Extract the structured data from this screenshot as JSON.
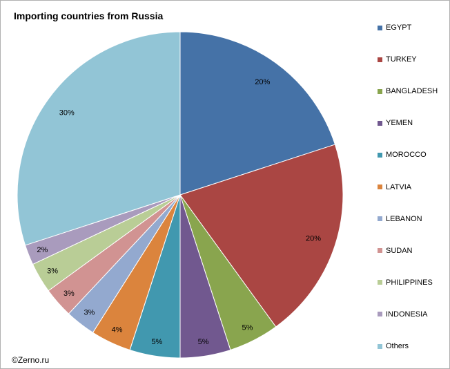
{
  "chart_data": {
    "type": "pie",
    "title": "Importing countries from Russia",
    "slices": [
      {
        "label": "EGYPT",
        "value": 20,
        "display": "20%",
        "color": "#4572A7"
      },
      {
        "label": "TURKEY",
        "value": 20,
        "display": "20%",
        "color": "#AA4643"
      },
      {
        "label": "BANGLADESH",
        "value": 5,
        "display": "5%",
        "color": "#89A54E"
      },
      {
        "label": "YEMEN",
        "value": 5,
        "display": "5%",
        "color": "#71588F"
      },
      {
        "label": "MOROCCO",
        "value": 5,
        "display": "5%",
        "color": "#4198AF"
      },
      {
        "label": "LATVIA",
        "value": 4,
        "display": "4%",
        "color": "#DB843D"
      },
      {
        "label": "LEBANON",
        "value": 3,
        "display": "3%",
        "color": "#93A9CF"
      },
      {
        "label": "SUDAN",
        "value": 3,
        "display": "3%",
        "color": "#D19392"
      },
      {
        "label": "PHILIPPINES",
        "value": 3,
        "display": "3%",
        "color": "#B9CD96"
      },
      {
        "label": "INDONESIA",
        "value": 2,
        "display": "2%",
        "color": "#A99BBD"
      },
      {
        "label": "Others",
        "value": 30,
        "display": "30%",
        "color": "#92C5D6"
      }
    ],
    "start_angle_deg": 0,
    "direction": "clockwise",
    "legend_position": "right"
  },
  "footer": {
    "copyright": "©Zerno.ru"
  }
}
